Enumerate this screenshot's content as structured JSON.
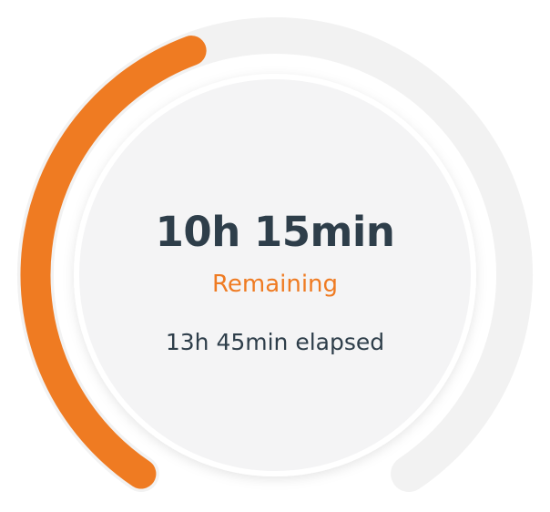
{
  "timer": {
    "remaining_time": "10h 15min",
    "remaining_label": "Remaining",
    "elapsed_text": "13h 45min elapsed",
    "progress_fraction": 0.43,
    "accent_color": "#ef7b22",
    "track_color": "#f2f2f2",
    "text_color": "#2e3e4a"
  }
}
